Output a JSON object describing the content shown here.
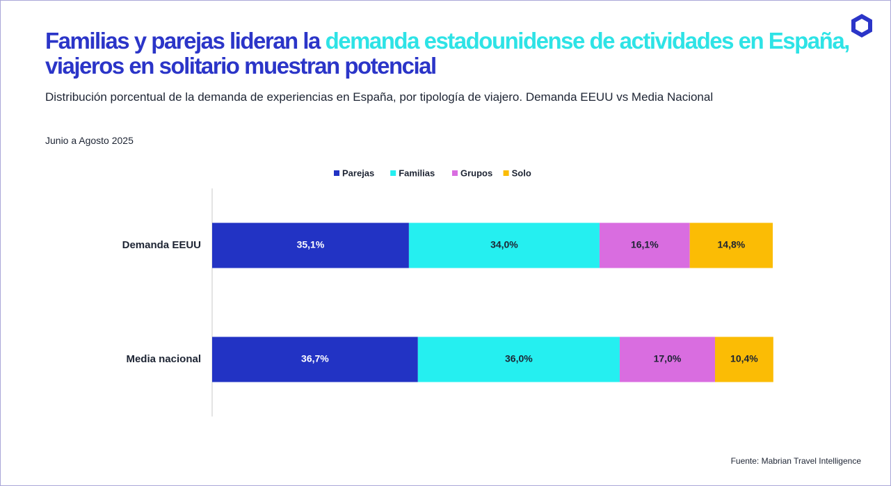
{
  "chart_data": {
    "type": "stacked-bar-horizontal",
    "title": [
      {
        "text": "Familias y parejas lideran la ",
        "color": "#2b35c8"
      },
      {
        "text": "demanda estadounidense de actividades en España,",
        "color": "#2ee3e6"
      },
      {
        "text": " viajeros en solitario muestran potencial",
        "color": "#2b35c8"
      }
    ],
    "subtitle": "Distribución porcentual de la demanda de experiencias en España, por tipología de viajero. Demanda EEUU vs Media Nacional",
    "period": "Junio a Agosto 2025",
    "source": "Fuente: Mabrian Travel Intelligence",
    "categories": [
      "Demanda EEUU",
      "Media nacional"
    ],
    "series": [
      {
        "name": "Parejas",
        "color": "#2233c4",
        "values": [
          35.1,
          36.7
        ],
        "value_labels": [
          "35,1%",
          "36,7%"
        ]
      },
      {
        "name": "Familias",
        "color": "#25eff0",
        "values": [
          34.0,
          36.0
        ],
        "value_labels": [
          "34,0%",
          "36,0%"
        ]
      },
      {
        "name": "Grupos",
        "color": "#d96de0",
        "values": [
          16.1,
          17.0
        ],
        "value_labels": [
          "16,1%",
          "17,0%"
        ]
      },
      {
        "name": "Solo",
        "color": "#fbbc05",
        "values": [
          14.8,
          10.4
        ],
        "value_labels": [
          "14,8%",
          "10,4%"
        ]
      }
    ],
    "xlim": [
      0,
      100
    ],
    "legend": "top"
  }
}
